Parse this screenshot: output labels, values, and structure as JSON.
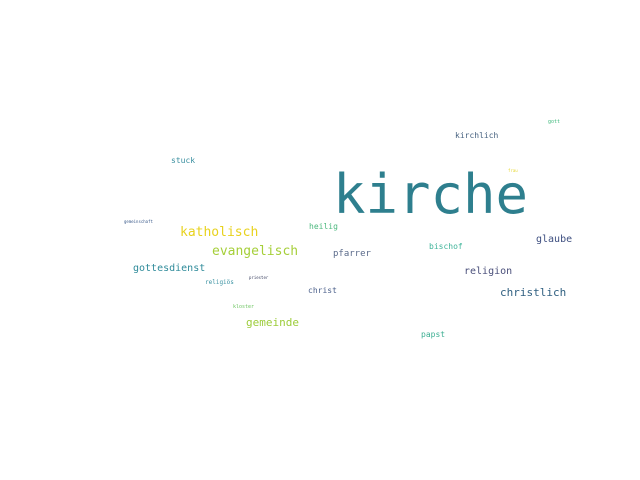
{
  "cloud": {
    "words": [
      {
        "text": "kirche",
        "color": "#2e7f8e"
      },
      {
        "text": "kirchlich",
        "color": "#46617f"
      },
      {
        "text": "gott",
        "color": "#3cb87a"
      },
      {
        "text": "frau",
        "color": "#e5d62b"
      },
      {
        "text": "stuck",
        "color": "#3a8fa0"
      },
      {
        "text": "gemeinschaft",
        "color": "#3a5a8a"
      },
      {
        "text": "katholisch",
        "color": "#e8d21e"
      },
      {
        "text": "evangelisch",
        "color": "#a6cf3a"
      },
      {
        "text": "heilig",
        "color": "#4cb87e"
      },
      {
        "text": "pfarrer",
        "color": "#5a6a8a"
      },
      {
        "text": "bischof",
        "color": "#3fb49a"
      },
      {
        "text": "glaube",
        "color": "#3e4f80"
      },
      {
        "text": "gottesdienst",
        "color": "#2f8b9a"
      },
      {
        "text": "religion",
        "color": "#4a4f7a"
      },
      {
        "text": "religiös",
        "color": "#3a92a2"
      },
      {
        "text": "priester",
        "color": "#3a4060"
      },
      {
        "text": "christ",
        "color": "#4a5f8a"
      },
      {
        "text": "christlich",
        "color": "#2f5f80"
      },
      {
        "text": "kloster",
        "color": "#6cc460"
      },
      {
        "text": "gemeinde",
        "color": "#9ccc3a"
      },
      {
        "text": "papst",
        "color": "#3cae92"
      }
    ]
  }
}
